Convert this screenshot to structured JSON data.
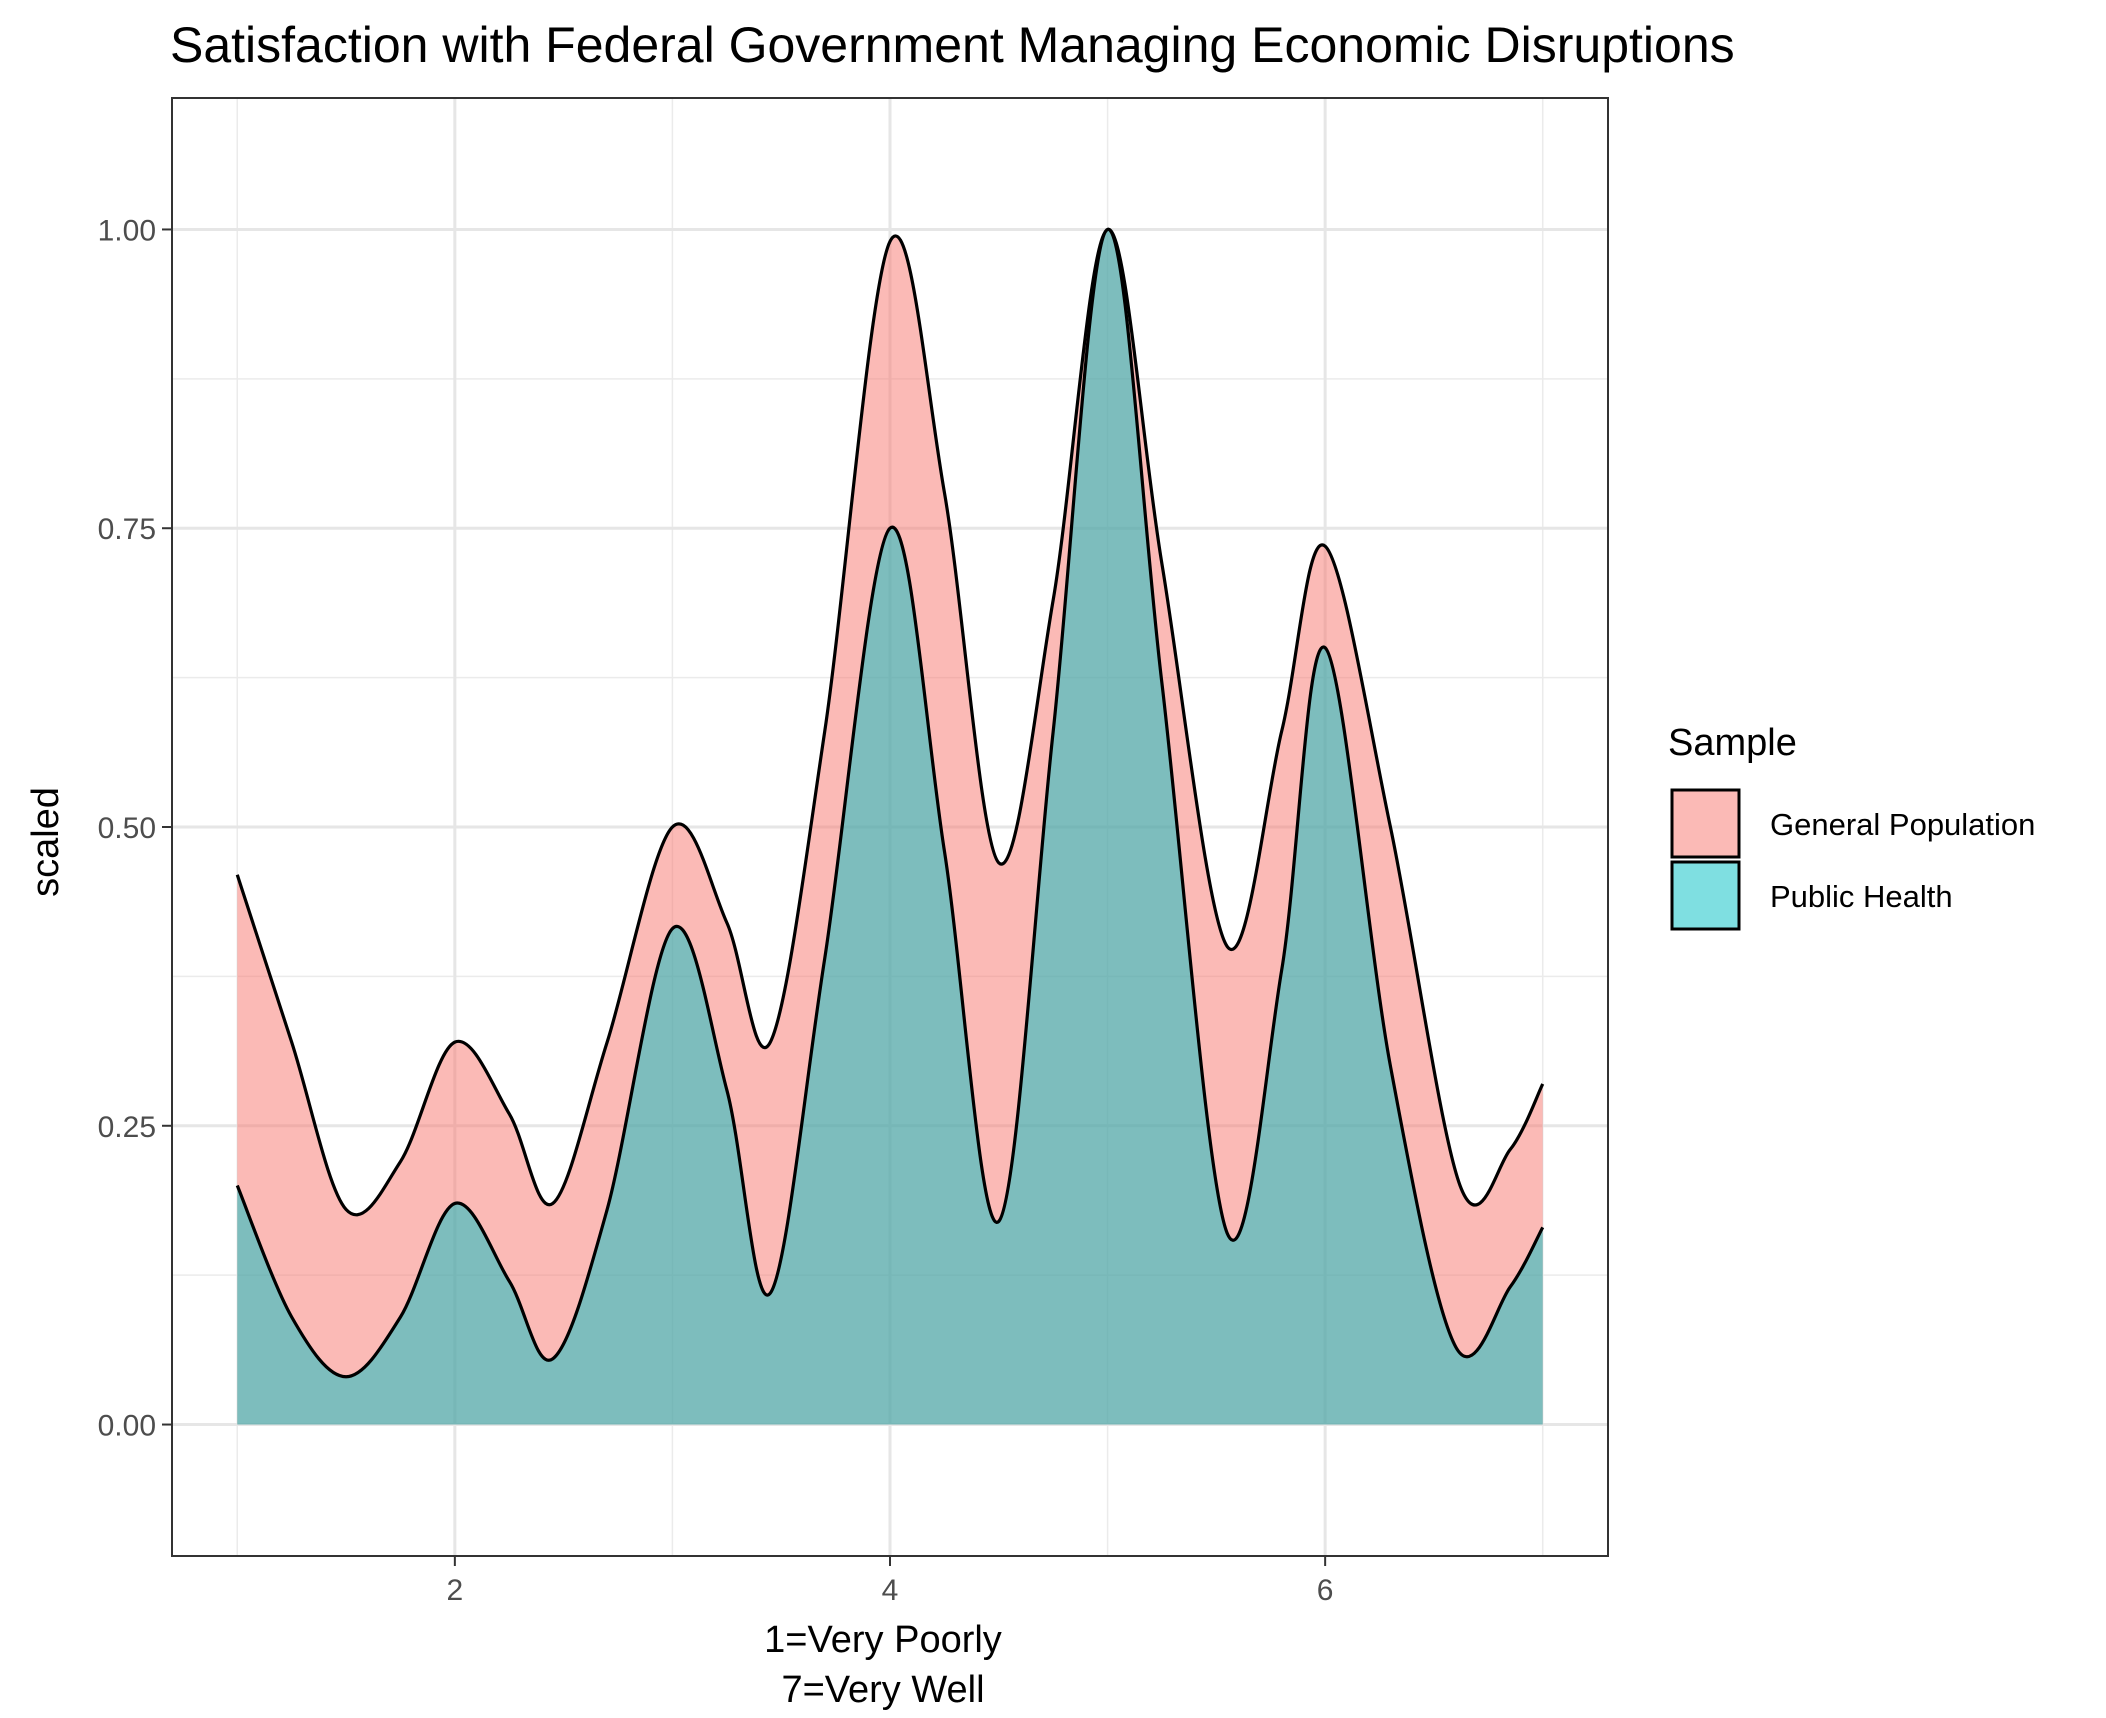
{
  "chart_data": {
    "type": "area",
    "title": "Satisfaction with Federal Government Managing Economic Disruptions",
    "xlabel_lines": [
      "1=Very Poorly",
      "7=Very Well"
    ],
    "ylabel": "scaled",
    "xlim": [
      0.7,
      7.3
    ],
    "ylim": [
      -0.11,
      1.11
    ],
    "x_ticks": [
      2,
      4,
      6
    ],
    "x_tick_labels": [
      "2",
      "4",
      "6"
    ],
    "y_ticks": [
      0,
      0.25,
      0.5,
      0.75,
      1.0
    ],
    "y_tick_labels": [
      "0.00",
      "0.25",
      "0.50",
      "0.75",
      "1.00"
    ],
    "grid": true,
    "legend_title": "Sample",
    "legend_position": "right",
    "series": [
      {
        "name": "General Population",
        "color": "#F8766D",
        "fill_opacity": 0.5,
        "x": [
          1.0,
          1.25,
          1.5,
          1.75,
          2.0,
          2.25,
          2.45,
          2.7,
          3.0,
          3.25,
          3.45,
          3.7,
          4.0,
          4.25,
          4.5,
          4.75,
          5.0,
          5.25,
          5.55,
          5.8,
          6.0,
          6.3,
          6.62,
          6.85,
          7.0
        ],
        "values": [
          0.46,
          0.32,
          0.18,
          0.22,
          0.32,
          0.26,
          0.185,
          0.32,
          0.5,
          0.42,
          0.32,
          0.58,
          0.99,
          0.78,
          0.47,
          0.69,
          1.0,
          0.72,
          0.4,
          0.58,
          0.735,
          0.5,
          0.2,
          0.23,
          0.285
        ]
      },
      {
        "name": "Public Health",
        "color": "#00BFC4",
        "fill_opacity": 0.5,
        "x": [
          1.0,
          1.25,
          1.5,
          1.75,
          2.0,
          2.25,
          2.45,
          2.7,
          3.0,
          3.25,
          3.45,
          3.7,
          4.0,
          4.25,
          4.5,
          4.75,
          5.0,
          5.25,
          5.55,
          5.8,
          6.0,
          6.3,
          6.6,
          6.85,
          7.0
        ],
        "values": [
          0.2,
          0.09,
          0.04,
          0.09,
          0.185,
          0.12,
          0.055,
          0.18,
          0.415,
          0.28,
          0.11,
          0.39,
          0.75,
          0.48,
          0.17,
          0.58,
          1.0,
          0.62,
          0.16,
          0.38,
          0.65,
          0.3,
          0.065,
          0.115,
          0.165
        ]
      }
    ]
  }
}
